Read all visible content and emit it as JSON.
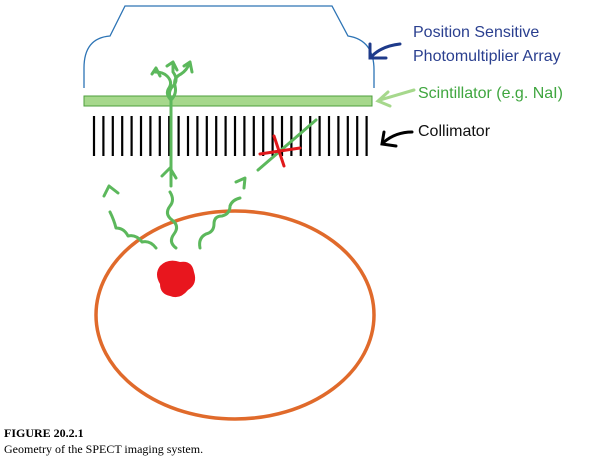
{
  "labels": {
    "pmt_line1": "Position Sensitive",
    "pmt_line2": "Photomultiplier Array",
    "scintillator": "Scintillator (e.g. NaI)",
    "collimator": "Collimator"
  },
  "caption": {
    "title": "FIGURE 20.2.1",
    "text": "Geometry of the SPECT imaging system."
  },
  "colors": {
    "pmt_outline": "#2d74b5",
    "label_blue": "#2a3f8f",
    "scintillator_fill": "#a6d88c",
    "scintillator_stroke": "#4e9f3d",
    "gamma_ray": "#5cb85c",
    "blocked_mark": "#e0191b",
    "body_outline": "#e06a2b",
    "source": "#e8161e",
    "collimator": "#000000"
  },
  "icons": {
    "pmt_arrow": "arrow-left-icon",
    "scintillator_arrow": "arrow-left-icon",
    "collimator_arrow": "arrow-left-icon"
  }
}
